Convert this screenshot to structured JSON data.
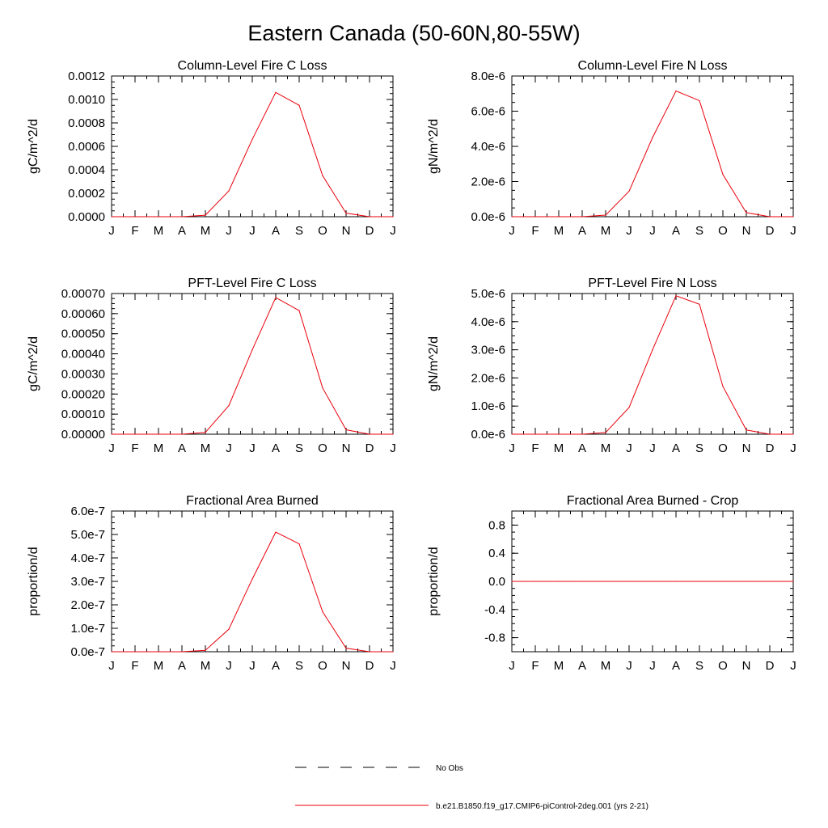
{
  "figure": {
    "title": "Eastern Canada (50-60N,80-55W)"
  },
  "colors": {
    "series": "#e8000b",
    "axes": "#000000",
    "obs": "#000000"
  },
  "legend": {
    "placement": "bottom-center",
    "entries": [
      {
        "label": "No Obs",
        "style": "dashed",
        "color": "#000000"
      },
      {
        "label": "b.e21.B1850.f19_g17.CMIP6-piControl-2deg.001 (yrs 2-21)",
        "style": "solid",
        "color": "#e8000b"
      }
    ]
  },
  "chart_data": [
    {
      "type": "line",
      "title": "Column-Level Fire C Loss",
      "ylabel": "gC/m^2/d",
      "xlabel": "",
      "x": [
        "J",
        "F",
        "M",
        "A",
        "M",
        "J",
        "J",
        "A",
        "S",
        "O",
        "N",
        "D",
        "J"
      ],
      "ylim": [
        0,
        0.0012
      ],
      "yticks": [
        0,
        0.0002,
        0.0004,
        0.0006,
        0.0008,
        0.001,
        0.0012
      ],
      "ytick_labels": [
        "0.0000",
        "0.0002",
        "0.0004",
        "0.0006",
        "0.0008",
        "0.0010",
        "0.0012"
      ],
      "series": [
        {
          "values": [
            0,
            0,
            0,
            0,
            1.3e-05,
            0.00022,
            0.00066,
            0.00106,
            0.00095,
            0.00035,
            3e-05,
            0,
            0
          ]
        }
      ]
    },
    {
      "type": "line",
      "title": "Column-Level Fire N Loss",
      "ylabel": "gN/m^2/d",
      "xlabel": "",
      "x": [
        "J",
        "F",
        "M",
        "A",
        "M",
        "J",
        "J",
        "A",
        "S",
        "O",
        "N",
        "D",
        "J"
      ],
      "ylim": [
        0,
        8e-06
      ],
      "yticks": [
        0,
        2e-06,
        4e-06,
        6e-06,
        8e-06
      ],
      "ytick_labels": [
        "0.0e-6",
        "2.0e-6",
        "4.0e-6",
        "6.0e-6",
        "8.0e-6"
      ],
      "series": [
        {
          "values": [
            0,
            0,
            0,
            0,
            9e-08,
            1.45e-06,
            4.5e-06,
            7.15e-06,
            6.6e-06,
            2.4e-06,
            2.3e-07,
            0,
            0
          ]
        }
      ]
    },
    {
      "type": "line",
      "title": "PFT-Level Fire C Loss",
      "ylabel": "gC/m^2/d",
      "xlabel": "",
      "x": [
        "J",
        "F",
        "M",
        "A",
        "M",
        "J",
        "J",
        "A",
        "S",
        "O",
        "N",
        "D",
        "J"
      ],
      "ylim": [
        0,
        0.0007
      ],
      "yticks": [
        0,
        0.0001,
        0.0002,
        0.0003,
        0.0004,
        0.0005,
        0.0006,
        0.0007
      ],
      "ytick_labels": [
        "0.00000",
        "0.00010",
        "0.00020",
        "0.00030",
        "0.00040",
        "0.00050",
        "0.00060",
        "0.00070"
      ],
      "series": [
        {
          "values": [
            0,
            0,
            0,
            0,
            9e-06,
            0.000142,
            0.00042,
            0.00068,
            0.000615,
            0.00023,
            2.2e-05,
            0,
            0
          ]
        }
      ]
    },
    {
      "type": "line",
      "title": "PFT-Level Fire N Loss",
      "ylabel": "gN/m^2/d",
      "xlabel": "",
      "x": [
        "J",
        "F",
        "M",
        "A",
        "M",
        "J",
        "J",
        "A",
        "S",
        "O",
        "N",
        "D",
        "J"
      ],
      "ylim": [
        0,
        5e-06
      ],
      "yticks": [
        0,
        1e-06,
        2e-06,
        3e-06,
        4e-06,
        5e-06
      ],
      "ytick_labels": [
        "0.0e-6",
        "1.0e-6",
        "2.0e-6",
        "3.0e-6",
        "4.0e-6",
        "5.0e-6"
      ],
      "series": [
        {
          "values": [
            0,
            0,
            0,
            0,
            6e-08,
            9.5e-07,
            3e-06,
            4.92e-06,
            4.62e-06,
            1.7e-06,
            1.5e-07,
            0,
            0
          ]
        }
      ]
    },
    {
      "type": "line",
      "title": "Fractional Area Burned",
      "ylabel": "proportion/d",
      "xlabel": "",
      "x": [
        "J",
        "F",
        "M",
        "A",
        "M",
        "J",
        "J",
        "A",
        "S",
        "O",
        "N",
        "D",
        "J"
      ],
      "ylim": [
        0,
        6e-07
      ],
      "yticks": [
        0,
        1e-07,
        2e-07,
        3e-07,
        4e-07,
        5e-07,
        6e-07
      ],
      "ytick_labels": [
        "0.0e-7",
        "1.0e-7",
        "2.0e-7",
        "3.0e-7",
        "4.0e-7",
        "5.0e-7",
        "6.0e-7"
      ],
      "series": [
        {
          "values": [
            0,
            0,
            0,
            0,
            6e-09,
            9.6e-08,
            3.1e-07,
            5.1e-07,
            4.6e-07,
            1.7e-07,
            1.5e-08,
            0,
            0
          ]
        }
      ]
    },
    {
      "type": "line",
      "title": "Fractional Area Burned - Crop",
      "ylabel": "proportion/d",
      "xlabel": "",
      "x": [
        "J",
        "F",
        "M",
        "A",
        "M",
        "J",
        "J",
        "A",
        "S",
        "O",
        "N",
        "D",
        "J"
      ],
      "ylim": [
        -1,
        1
      ],
      "yticks": [
        -0.8,
        -0.4,
        0,
        0.4,
        0.8
      ],
      "ytick_labels": [
        "-0.8",
        "-0.4",
        "0.0",
        "0.4",
        "0.8"
      ],
      "series": [
        {
          "values": [
            0,
            0,
            0,
            0,
            0,
            0,
            0,
            0,
            0,
            0,
            0,
            0,
            0
          ]
        }
      ]
    }
  ]
}
